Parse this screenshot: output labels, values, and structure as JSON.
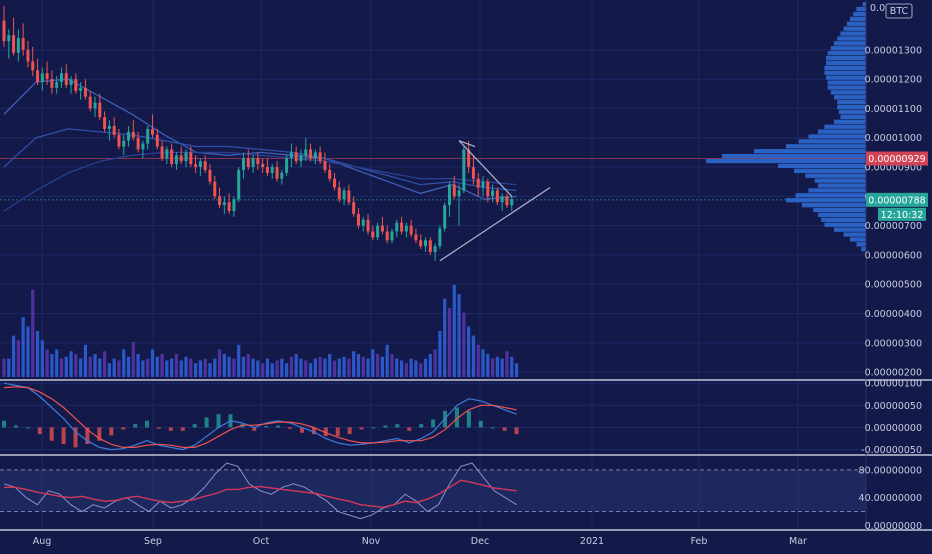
{
  "colors": {
    "background": "#131a4a",
    "grid": "#1e2766",
    "up": "#26a69a",
    "down": "#ef5350",
    "volume_blue": "#2f5fd6",
    "volume_purple": "#5a34a6",
    "ma_line": "#3f64c8",
    "pattern_line": "#b0b4cc",
    "profile": "#2f6fd8",
    "badge_red": "#d04455",
    "badge_teal": "#26a69a",
    "macd_line": "#3d7bd8",
    "signal_line": "#ef5350",
    "rsi_line": "#d6365a",
    "stoch_line": "#8a93c8"
  },
  "currency_badge": "BTC",
  "chart_data": [
    {
      "type": "candlestick",
      "pane": "price",
      "y_ticks": [
        "0.00000200",
        "0.00000300",
        "0.00000400",
        "0.00000500",
        "0.00000600",
        "0.00000700",
        "0.00000800",
        "0.00000900",
        "0.00001000",
        "0.00001100",
        "0.00001200",
        "0.00001300"
      ],
      "y_top_label_partial": "0.0",
      "ylim": [
        1.8e-06,
        1.47e-05
      ],
      "x_ticks": [
        "Aug",
        "Sep",
        "Oct",
        "Nov",
        "Dec",
        "2021",
        "Feb",
        "Mar"
      ],
      "candles_daily_approx_jul21_to_dec12": [
        [
          1.4e-05,
          1.45e-05,
          1.31e-05,
          1.33e-05
        ],
        [
          1.33e-05,
          1.37e-05,
          1.27e-05,
          1.35e-05
        ],
        [
          1.35e-05,
          1.41e-05,
          1.28e-05,
          1.29e-05
        ],
        [
          1.29e-05,
          1.37e-05,
          1.26e-05,
          1.34e-05
        ],
        [
          1.34e-05,
          1.39e-05,
          1.28e-05,
          1.3e-05
        ],
        [
          1.3e-05,
          1.33e-05,
          1.24e-05,
          1.26e-05
        ],
        [
          1.26e-05,
          1.31e-05,
          1.21e-05,
          1.23e-05
        ],
        [
          1.23e-05,
          1.27e-05,
          1.18e-05,
          1.19e-05
        ],
        [
          1.19e-05,
          1.24e-05,
          1.16e-05,
          1.22e-05
        ],
        [
          1.22e-05,
          1.26e-05,
          1.18e-05,
          1.2e-05
        ],
        [
          1.2e-05,
          1.23e-05,
          1.15e-05,
          1.17e-05
        ],
        [
          1.17e-05,
          1.21e-05,
          1.15e-05,
          1.19e-05
        ],
        [
          1.19e-05,
          1.24e-05,
          1.17e-05,
          1.22e-05
        ],
        [
          1.22e-05,
          1.25e-05,
          1.17e-05,
          1.18e-05
        ],
        [
          1.18e-05,
          1.21e-05,
          1.15e-05,
          1.2e-05
        ],
        [
          1.2e-05,
          1.22e-05,
          1.15e-05,
          1.16e-05
        ],
        [
          1.16e-05,
          1.19e-05,
          1.13e-05,
          1.17e-05
        ],
        [
          1.17e-05,
          1.2e-05,
          1.13e-05,
          1.14e-05
        ],
        [
          1.14e-05,
          1.16e-05,
          1.09e-05,
          1.1e-05
        ],
        [
          1.1e-05,
          1.14e-05,
          1.07e-05,
          1.12e-05
        ],
        [
          1.12e-05,
          1.15e-05,
          1.06e-05,
          1.07e-05
        ],
        [
          1.07e-05,
          1.09e-05,
          1.02e-05,
          1.03e-05
        ],
        [
          1.03e-05,
          1.06e-05,
          9.9e-06,
          1.04e-05
        ],
        [
          1.04e-05,
          1.07e-05,
          1e-05,
          1.01e-05
        ],
        [
          1.01e-05,
          1.03e-05,
          9.6e-06,
          9.7e-06
        ],
        [
          9.7e-06,
          1.01e-05,
          9.4e-06,
          9.9e-06
        ],
        [
          9.9e-06,
          1.04e-05,
          9.7e-06,
          1.02e-05
        ],
        [
          1.02e-05,
          1.06e-05,
          9.9e-06,
          1e-05
        ],
        [
          1e-05,
          1.02e-05,
          9.5e-06,
          9.6e-06
        ],
        [
          9.6e-06,
          9.9e-06,
          9.3e-06,
          9.8e-06
        ],
        [
          9.8e-06,
          1.04e-05,
          9.6e-06,
          1.03e-05
        ],
        [
          1.03e-05,
          1.08e-05,
          1e-05,
          1.01e-05
        ],
        [
          1.01e-05,
          1.03e-05,
          9.6e-06,
          9.7e-06
        ],
        [
          9.7e-06,
          9.9e-06,
          9.2e-06,
          9.3e-06
        ],
        [
          9.3e-06,
          9.7e-06,
          9.1e-06,
          9.6e-06
        ],
        [
          9.6e-06,
          9.8e-06,
          9e-06,
          9.1e-06
        ],
        [
          9.1e-06,
          9.5e-06,
          8.9e-06,
          9.4e-06
        ],
        [
          9.4e-06,
          9.7e-06,
          9.1e-06,
          9.2e-06
        ],
        [
          9.2e-06,
          9.6e-06,
          9e-06,
          9.5e-06
        ],
        [
          9.5e-06,
          9.7e-06,
          9e-06,
          9.1e-06
        ],
        [
          9.1e-06,
          9.4e-06,
          8.8e-06,
          9e-06
        ],
        [
          9e-06,
          9.3e-06,
          8.7e-06,
          9.2e-06
        ],
        [
          9.2e-06,
          9.4e-06,
          8.8e-06,
          8.9e-06
        ],
        [
          8.9e-06,
          9.1e-06,
          8.4e-06,
          8.5e-06
        ],
        [
          8.5e-06,
          8.7e-06,
          7.9e-06,
          8e-06
        ],
        [
          8e-06,
          8.3e-06,
          7.6e-06,
          7.7e-06
        ],
        [
          7.7e-06,
          8e-06,
          7.4e-06,
          7.8e-06
        ],
        [
          7.8e-06,
          8.1e-06,
          7.4e-06,
          7.5e-06
        ],
        [
          7.5e-06,
          8e-06,
          7.3e-06,
          7.9e-06
        ],
        [
          7.9e-06,
          9e-06,
          7.8e-06,
          8.9e-06
        ],
        [
          8.9e-06,
          9.5e-06,
          8.6e-06,
          9.3e-06
        ],
        [
          9.3e-06,
          9.6e-06,
          8.9e-06,
          9e-06
        ],
        [
          9e-06,
          9.4e-06,
          8.8e-06,
          9.3e-06
        ],
        [
          9.3e-06,
          9.5e-06,
          8.9e-06,
          9.1e-06
        ],
        [
          9.1e-06,
          9.3e-06,
          8.8e-06,
          9e-06
        ],
        [
          9e-06,
          9.3e-06,
          8.7e-06,
          8.8e-06
        ],
        [
          8.8e-06,
          9.1e-06,
          8.6e-06,
          9e-06
        ],
        [
          9e-06,
          9.2e-06,
          8.5e-06,
          8.6e-06
        ],
        [
          8.6e-06,
          8.9e-06,
          8.4e-06,
          8.8e-06
        ],
        [
          8.8e-06,
          9.4e-06,
          8.7e-06,
          9.3e-06
        ],
        [
          9.3e-06,
          9.8e-06,
          9e-06,
          9.5e-06
        ],
        [
          9.5e-06,
          9.7e-06,
          9.1e-06,
          9.2e-06
        ],
        [
          9.2e-06,
          9.6e-06,
          9e-06,
          9.4e-06
        ],
        [
          9.4e-06,
          1e-05,
          9.2e-06,
          9.6e-06
        ],
        [
          9.6e-06,
          9.8e-06,
          9.2e-06,
          9.3e-06
        ],
        [
          9.3e-06,
          9.6e-06,
          9.1e-06,
          9.5e-06
        ],
        [
          9.5e-06,
          9.7e-06,
          9.1e-06,
          9.2e-06
        ],
        [
          9.2e-06,
          9.5e-06,
          8.8e-06,
          8.9e-06
        ],
        [
          8.9e-06,
          9.1e-06,
          8.5e-06,
          8.6e-06
        ],
        [
          8.6e-06,
          8.8e-06,
          8.2e-06,
          8.3e-06
        ],
        [
          8.3e-06,
          8.5e-06,
          7.8e-06,
          7.9e-06
        ],
        [
          7.9e-06,
          8.3e-06,
          7.7e-06,
          8.2e-06
        ],
        [
          8.2e-06,
          8.4e-06,
          7.7e-06,
          7.8e-06
        ],
        [
          7.8e-06,
          8e-06,
          7.3e-06,
          7.4e-06
        ],
        [
          7.4e-06,
          7.6e-06,
          6.9e-06,
          7e-06
        ],
        [
          7e-06,
          7.3e-06,
          6.8e-06,
          7.2e-06
        ],
        [
          7.2e-06,
          7.4e-06,
          6.7e-06,
          6.8e-06
        ],
        [
          6.8e-06,
          7e-06,
          6.5e-06,
          6.6e-06
        ],
        [
          6.6e-06,
          7.1e-06,
          6.5e-06,
          7e-06
        ],
        [
          7e-06,
          7.3e-06,
          6.7e-06,
          6.8e-06
        ],
        [
          6.8e-06,
          7e-06,
          6.4e-06,
          6.5e-06
        ],
        [
          6.5e-06,
          6.9e-06,
          6.4e-06,
          6.8e-06
        ],
        [
          6.8e-06,
          7.2e-06,
          6.6e-06,
          7.1e-06
        ],
        [
          7.1e-06,
          7.3e-06,
          6.7e-06,
          6.8e-06
        ],
        [
          6.8e-06,
          7.1e-06,
          6.6e-06,
          7e-06
        ],
        [
          7e-06,
          7.2e-06,
          6.6e-06,
          6.7e-06
        ],
        [
          6.7e-06,
          6.9e-06,
          6.4e-06,
          6.5e-06
        ],
        [
          6.5e-06,
          6.7e-06,
          6.2e-06,
          6.3e-06
        ],
        [
          6.3e-06,
          6.6e-06,
          6.1e-06,
          6.5e-06
        ],
        [
          6.5e-06,
          6.6e-06,
          6e-06,
          6.1e-06
        ],
        [
          6.1e-06,
          6.4e-06,
          5.8e-06,
          6.3e-06
        ],
        [
          6.3e-06,
          7e-06,
          6.2e-06,
          6.9e-06
        ],
        [
          6.9e-06,
          7.8e-06,
          6.8e-06,
          7.7e-06
        ],
        [
          7.7e-06,
          8.5e-06,
          7.3e-06,
          8.4e-06
        ],
        [
          8.4e-06,
          8.7e-06,
          7.9e-06,
          8e-06
        ],
        [
          8e-06,
          8.4e-06,
          7e-06,
          8.2e-06
        ],
        [
          8.2e-06,
          9.7e-06,
          8.1e-06,
          9.6e-06
        ],
        [
          9.6e-06,
          9.9e-06,
          8.8e-06,
          9e-06
        ],
        [
          9e-06,
          9.4e-06,
          8.4e-06,
          8.6e-06
        ],
        [
          8.6e-06,
          8.8e-06,
          8e-06,
          8.3e-06
        ],
        [
          8.3e-06,
          8.7e-06,
          8e-06,
          8.5e-06
        ],
        [
          8.5e-06,
          8.6e-06,
          7.8e-06,
          8e-06
        ],
        [
          8e-06,
          8.4e-06,
          7.8e-06,
          8.2e-06
        ],
        [
          8.2e-06,
          8.3e-06,
          7.7e-06,
          7.8e-06
        ],
        [
          7.8e-06,
          8.1e-06,
          7.5e-06,
          8e-06
        ],
        [
          8e-06,
          8.1e-06,
          7.6e-06,
          7.7e-06
        ],
        [
          7.7e-06,
          8e-06,
          7.5e-06,
          7.9e-06
        ]
      ],
      "moving_averages_approx": [
        [
          [
            1.08e-05,
            1.19e-05,
            1.2e-05,
            1.14e-05,
            1.08e-05,
            1.01e-05,
            9.5e-06,
            9.4e-06,
            9.5e-06,
            9.4e-06,
            9.3e-06,
            8.9e-06,
            8.5e-06,
            8.1e-06,
            8.4e-06,
            7.9e-06,
            8e-06
          ]
        ],
        [
          [
            9e-06,
            1e-05,
            1.03e-05,
            1.02e-05,
            1.01e-05,
            9.9e-06,
            9.7e-06,
            9.7e-06,
            9.6e-06,
            9.5e-06,
            9.3e-06,
            9e-06,
            8.7e-06,
            8.4e-06,
            8.5e-06,
            8.3e-06,
            8.2e-06
          ]
        ],
        [
          [
            7.5e-06,
            8.2e-06,
            8.8e-06,
            9.2e-06,
            9.4e-06,
            9.5e-06,
            9.5e-06,
            9.5e-06,
            9.4e-06,
            9.3e-06,
            9.2e-06,
            9e-06,
            8.8e-06,
            8.6e-06,
            8.6e-06,
            8.5e-06,
            8.4e-06
          ]
        ]
      ],
      "triangle_pattern": {
        "upper_start": [
          95,
          9.9e-06
        ],
        "upper_end": [
          106,
          8e-06
        ],
        "lower_start": [
          91,
          5.8e-06
        ],
        "lower_end": [
          114,
          8.3e-06
        ]
      },
      "price_badges": [
        {
          "label": "0.00000929",
          "color": "red"
        },
        {
          "label": "0.00000788",
          "color": "teal"
        },
        {
          "label": "12:10:32",
          "color": "teal"
        }
      ]
    },
    {
      "type": "bar",
      "pane": "volume",
      "values_relative": [
        0.2,
        0.2,
        0.45,
        0.4,
        0.65,
        0.55,
        0.95,
        0.5,
        0.4,
        0.3,
        0.25,
        0.3,
        0.2,
        0.22,
        0.28,
        0.25,
        0.2,
        0.35,
        0.22,
        0.25,
        0.2,
        0.28,
        0.15,
        0.2,
        0.18,
        0.3,
        0.22,
        0.38,
        0.25,
        0.18,
        0.2,
        0.3,
        0.22,
        0.25,
        0.18,
        0.2,
        0.25,
        0.18,
        0.22,
        0.2,
        0.15,
        0.18,
        0.2,
        0.15,
        0.2,
        0.3,
        0.25,
        0.22,
        0.2,
        0.35,
        0.22,
        0.25,
        0.2,
        0.18,
        0.15,
        0.2,
        0.15,
        0.18,
        0.2,
        0.15,
        0.22,
        0.25,
        0.2,
        0.18,
        0.15,
        0.2,
        0.22,
        0.2,
        0.25,
        0.18,
        0.2,
        0.22,
        0.2,
        0.28,
        0.25,
        0.22,
        0.2,
        0.3,
        0.25,
        0.22,
        0.35,
        0.25,
        0.2,
        0.18,
        0.15,
        0.2,
        0.18,
        0.15,
        0.2,
        0.25,
        0.3,
        0.5,
        0.85,
        0.75,
        1.0,
        0.9,
        0.7,
        0.55,
        0.45,
        0.35,
        0.3,
        0.25,
        0.2,
        0.22,
        0.2,
        0.28,
        0.22,
        0.15
      ]
    },
    {
      "type": "line",
      "pane": "macd",
      "y_ticks": [
        "0.00000100",
        "0.00000050",
        "0.00000000",
        "-0.00000050"
      ],
      "ylim": [
        -6e-07,
        1.05e-06
      ],
      "macd_approx": [
        1e-06,
        9.5e-07,
        9e-07,
        7e-07,
        4.5e-07,
        2e-07,
        -1e-07,
        -3e-07,
        -4.5e-07,
        -5e-07,
        -4.8e-07,
        -4e-07,
        -3e-07,
        -4e-07,
        -4.5e-07,
        -5e-07,
        -4e-07,
        -2e-07,
        0.0,
        1.5e-07,
        1e-07,
        0.0,
        1e-07,
        1.5e-07,
        1e-07,
        0.0,
        -1e-07,
        -2.5e-07,
        -3.5e-07,
        -4e-07,
        -3.8e-07,
        -3.5e-07,
        -3e-07,
        -2.5e-07,
        -3.5e-07,
        -2.5e-07,
        -1e-07,
        2e-07,
        5e-07,
        6.5e-07,
        6e-07,
        5e-07,
        4e-07,
        3e-07
      ],
      "signal_approx": [
        9e-07,
        9.2e-07,
        9e-07,
        8e-07,
        6.5e-07,
        4.5e-07,
        2e-07,
        -5e-08,
        -2.5e-07,
        -3.8e-07,
        -4.5e-07,
        -4.5e-07,
        -4e-07,
        -3.8e-07,
        -4e-07,
        -4.5e-07,
        -4.5e-07,
        -3.5e-07,
        -2e-07,
        -5e-08,
        5e-08,
        5e-08,
        8e-08,
        1.2e-07,
        1.2e-07,
        8e-08,
        0.0,
        -1.2e-07,
        -2.2e-07,
        -3e-07,
        -3.5e-07,
        -3.5e-07,
        -3.3e-07,
        -3e-07,
        -3e-07,
        -3e-07,
        -2.2e-07,
        -5e-08,
        2e-07,
        4e-07,
        5e-07,
        5e-07,
        4.5e-07,
        4e-07
      ]
    },
    {
      "type": "line",
      "pane": "rsi",
      "y_ticks": [
        "80.00000000",
        "40.00000000",
        "0.00000000"
      ],
      "ylim": [
        -5,
        100
      ],
      "rsi_approx": [
        55,
        55,
        52,
        48,
        45,
        42,
        40,
        42,
        38,
        35,
        36,
        40,
        42,
        38,
        35,
        33,
        35,
        37,
        42,
        46,
        52,
        52,
        55,
        56,
        54,
        52,
        50,
        48,
        46,
        42,
        38,
        35,
        30,
        28,
        26,
        30,
        35,
        33,
        38,
        45,
        55,
        65,
        62,
        58,
        54,
        52,
        50
      ],
      "stoch_approx": [
        60,
        55,
        40,
        30,
        50,
        45,
        30,
        20,
        30,
        25,
        35,
        40,
        30,
        20,
        35,
        25,
        30,
        40,
        55,
        75,
        90,
        85,
        60,
        50,
        45,
        55,
        60,
        55,
        45,
        35,
        20,
        15,
        10,
        15,
        25,
        30,
        45,
        35,
        20,
        30,
        60,
        85,
        90,
        70,
        50,
        40,
        30
      ],
      "levels": [
        80,
        20
      ]
    }
  ],
  "volume_profile_rel": [
    0.02,
    0.06,
    0.08,
    0.1,
    0.12,
    0.14,
    0.16,
    0.18,
    0.2,
    0.22,
    0.24,
    0.25,
    0.25,
    0.26,
    0.26,
    0.25,
    0.24,
    0.24,
    0.22,
    0.2,
    0.18,
    0.18,
    0.17,
    0.16,
    0.2,
    0.26,
    0.3,
    0.36,
    0.42,
    0.5,
    0.7,
    0.9,
    1.0,
    0.55,
    0.45,
    0.38,
    0.32,
    0.3,
    0.36,
    0.44,
    0.5,
    0.4,
    0.33,
    0.3,
    0.28,
    0.26,
    0.2,
    0.14,
    0.1,
    0.06,
    0.03
  ]
}
